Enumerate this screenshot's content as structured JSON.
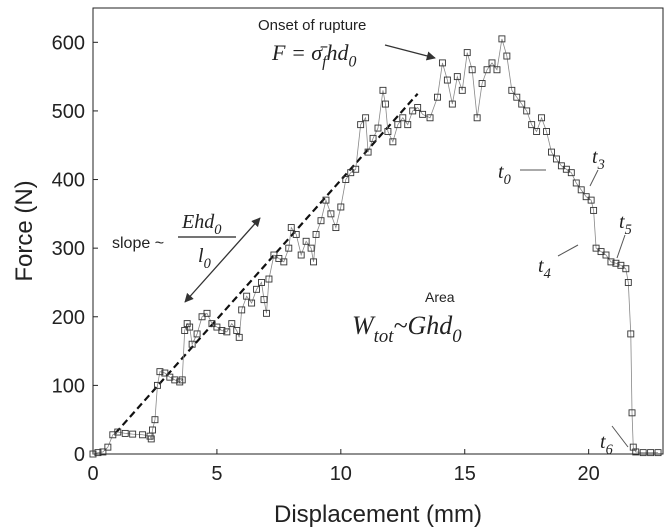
{
  "chart_data": {
    "type": "line",
    "x_label": "Displacement (mm)",
    "y_label": "Force (N)",
    "xlim": [
      0,
      23
    ],
    "ylim": [
      0,
      650
    ],
    "xticks": [
      0,
      5,
      10,
      15,
      20
    ],
    "yticks": [
      0,
      100,
      200,
      300,
      400,
      500,
      600
    ],
    "grid": false,
    "series": [
      {
        "color": "#333333",
        "x": [
          0,
          0.2,
          0.4,
          0.6,
          0.8,
          1.0,
          1.3,
          1.6,
          2.0,
          2.3,
          2.35,
          2.4,
          2.5,
          2.6,
          2.7,
          2.9,
          3.1,
          3.3,
          3.5,
          3.6,
          3.7,
          3.8,
          3.9,
          4.0,
          4.2,
          4.4,
          4.6,
          4.8,
          5.0,
          5.2,
          5.4,
          5.6,
          5.8,
          5.9,
          6.0,
          6.2,
          6.4,
          6.6,
          6.8,
          6.9,
          7.0,
          7.1,
          7.3,
          7.5,
          7.7,
          7.9,
          8.0,
          8.2,
          8.4,
          8.6,
          8.8,
          8.9,
          9.0,
          9.2,
          9.4,
          9.6,
          9.8,
          10.0,
          10.2,
          10.4,
          10.6,
          10.8,
          11.0,
          11.1,
          11.3,
          11.5,
          11.7,
          11.8,
          11.9,
          12.1,
          12.3,
          12.5,
          12.7,
          12.9,
          13.1,
          13.3,
          13.6,
          13.9,
          14.1,
          14.3,
          14.5,
          14.7,
          14.9,
          15.1,
          15.3,
          15.5,
          15.7,
          15.9,
          16.1,
          16.3,
          16.5,
          16.7,
          16.9,
          17.1,
          17.3,
          17.5,
          17.7,
          17.9,
          18.1,
          18.3,
          18.5,
          18.7,
          18.9,
          19.1,
          19.3,
          19.5,
          19.7,
          19.9,
          20.1,
          20.2,
          20.3,
          20.5,
          20.7,
          20.9,
          21.1,
          21.3,
          21.5,
          21.6,
          21.7,
          21.75,
          21.8,
          21.9,
          22.2,
          22.5,
          22.8
        ],
        "values": [
          0,
          2,
          3,
          10,
          28,
          32,
          30,
          29,
          28,
          26,
          22,
          35,
          50,
          100,
          120,
          118,
          112,
          108,
          105,
          108,
          180,
          190,
          185,
          160,
          175,
          200,
          205,
          190,
          185,
          180,
          178,
          190,
          180,
          170,
          210,
          230,
          220,
          240,
          250,
          225,
          205,
          255,
          290,
          285,
          280,
          300,
          330,
          320,
          290,
          310,
          300,
          280,
          320,
          340,
          370,
          350,
          330,
          360,
          400,
          410,
          415,
          480,
          490,
          440,
          460,
          475,
          530,
          510,
          470,
          455,
          480,
          490,
          480,
          500,
          505,
          495,
          490,
          520,
          570,
          545,
          510,
          550,
          530,
          585,
          560,
          490,
          540,
          560,
          570,
          560,
          605,
          580,
          530,
          520,
          510,
          500,
          480,
          470,
          490,
          470,
          440,
          430,
          420,
          415,
          410,
          395,
          385,
          375,
          370,
          355,
          300,
          295,
          290,
          280,
          278,
          275,
          270,
          250,
          175,
          60,
          10,
          3,
          2,
          2,
          2
        ]
      }
    ],
    "fit_line": {
      "x": [
        0.9,
        13.1
      ],
      "values": [
        30,
        525
      ]
    },
    "rupture_label": "Onset of rupture",
    "rupture_formula": [
      {
        "t": "F = σ̄"
      },
      {
        "t": "f",
        "sub": true
      },
      {
        "t": "hd"
      },
      {
        "t": "0",
        "sub": true
      }
    ],
    "slope_label": "slope ~",
    "slope_numerator": [
      {
        "t": "Ehd"
      },
      {
        "t": "0",
        "sub": true
      }
    ],
    "slope_denominator": [
      {
        "t": "l"
      },
      {
        "t": "0",
        "sub": true
      }
    ],
    "area_label": "Area",
    "area_formula": [
      {
        "t": "W"
      },
      {
        "t": "tot",
        "sub": true
      },
      {
        "t": "~Ghd"
      },
      {
        "t": "0",
        "sub": true
      }
    ],
    "time_labels": [
      [
        {
          "t": "t"
        },
        {
          "t": "0",
          "sub": true
        }
      ],
      [
        {
          "t": "t"
        },
        {
          "t": "3",
          "sub": true
        }
      ],
      [
        {
          "t": "t"
        },
        {
          "t": "4",
          "sub": true
        }
      ],
      [
        {
          "t": "t"
        },
        {
          "t": "5",
          "sub": true
        }
      ],
      [
        {
          "t": "t"
        },
        {
          "t": "6",
          "sub": true
        }
      ]
    ]
  }
}
